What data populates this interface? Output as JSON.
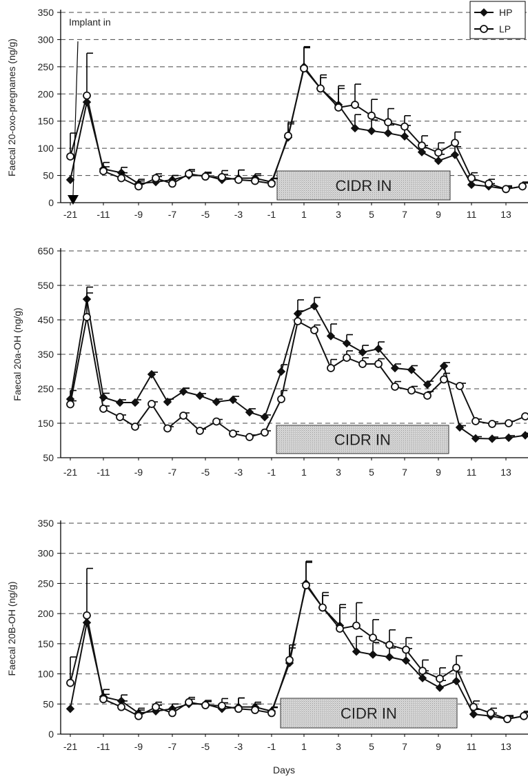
{
  "chart_data": [
    {
      "type": "line",
      "ylabel": "Faecal 20-oxo-pregnanes (ng/g)",
      "ylim": [
        0,
        350
      ],
      "yticks": [
        0,
        50,
        100,
        150,
        200,
        250,
        300,
        350
      ],
      "grid": "dashed-horizontal",
      "xticks": [
        "-21",
        "-11",
        "-9",
        "-7",
        "-5",
        "-3",
        "-1",
        "1",
        "3",
        "5",
        "7",
        "9",
        "11",
        "13"
      ],
      "annotation": "Implant in",
      "box_label": "CIDR IN",
      "legend": {
        "position": "top-right",
        "entries": [
          "HP",
          "LP"
        ]
      },
      "series": [
        {
          "name": "HP",
          "marker": "diamond",
          "values": [
            42,
            185,
            62,
            55,
            35,
            38,
            42,
            50,
            50,
            42,
            45,
            45,
            38,
            120,
            250,
            210,
            180,
            137,
            132,
            128,
            122,
            93,
            77,
            88,
            33,
            30,
            25,
            30
          ],
          "errors": [
            0,
            0,
            12,
            10,
            8,
            10,
            8,
            8,
            6,
            10,
            15,
            8,
            6,
            25,
            35,
            20,
            30,
            25,
            20,
            15,
            20,
            12,
            12,
            15,
            8,
            5,
            4,
            6
          ]
        },
        {
          "name": "LP",
          "marker": "circle",
          "values": [
            85,
            197,
            58,
            45,
            30,
            45,
            35,
            53,
            48,
            47,
            42,
            40,
            35,
            123,
            247,
            210,
            175,
            180,
            160,
            148,
            140,
            105,
            92,
            110,
            45,
            35,
            25,
            30
          ],
          "errors": [
            43,
            78,
            8,
            10,
            10,
            8,
            15,
            8,
            6,
            12,
            18,
            10,
            10,
            25,
            40,
            25,
            40,
            38,
            30,
            25,
            20,
            18,
            18,
            20,
            10,
            8,
            6,
            8
          ]
        }
      ]
    },
    {
      "type": "line",
      "ylabel": "Faecal 20a-OH (ng/g)",
      "ylim": [
        50,
        650
      ],
      "yticks": [
        50,
        150,
        250,
        350,
        450,
        550,
        650
      ],
      "grid": "dashed-horizontal",
      "xticks": [
        "-21",
        "-11",
        "-9",
        "-7",
        "-5",
        "-3",
        "-1",
        "1",
        "3",
        "5",
        "7",
        "9",
        "11",
        "13"
      ],
      "box_label": "CIDR IN",
      "series": [
        {
          "name": "HP",
          "marker": "diamond",
          "values": [
            220,
            510,
            225,
            210,
            210,
            292,
            212,
            242,
            230,
            212,
            218,
            182,
            168,
            300,
            468,
            490,
            403,
            382,
            356,
            366,
            310,
            305,
            262,
            316,
            138,
            106,
            105,
            108,
            115
          ],
          "errors": [
            25,
            35,
            12,
            8,
            8,
            6,
            8,
            10,
            6,
            8,
            10,
            10,
            6,
            20,
            40,
            25,
            35,
            25,
            20,
            20,
            12,
            12,
            10,
            10,
            5,
            5,
            5,
            6,
            6
          ]
        },
        {
          "name": "LP",
          "marker": "circle",
          "values": [
            205,
            458,
            192,
            168,
            140,
            206,
            135,
            172,
            128,
            155,
            120,
            110,
            123,
            220,
            446,
            420,
            310,
            340,
            322,
            322,
            256,
            245,
            230,
            277,
            258,
            156,
            148,
            150,
            170
          ],
          "errors": [
            10,
            70,
            8,
            6,
            5,
            6,
            5,
            8,
            5,
            6,
            6,
            6,
            5,
            25,
            30,
            15,
            25,
            20,
            18,
            15,
            15,
            12,
            12,
            18,
            8,
            6,
            6,
            6,
            6
          ]
        }
      ]
    },
    {
      "type": "line",
      "ylabel": "Faecal 20B-OH (ng/g)",
      "xlabel": "Days",
      "ylim": [
        0,
        350
      ],
      "yticks": [
        0,
        50,
        100,
        150,
        200,
        250,
        300,
        350
      ],
      "grid": "dashed-horizontal",
      "xticks": [
        "-21",
        "-11",
        "-9",
        "-7",
        "-5",
        "-3",
        "-1",
        "1",
        "3",
        "5",
        "7",
        "9",
        "11",
        "13"
      ],
      "box_label": "CIDR IN",
      "series": [
        {
          "name": "HP",
          "marker": "diamond",
          "values": [
            42,
            185,
            62,
            55,
            35,
            38,
            42,
            50,
            50,
            42,
            45,
            45,
            38,
            118,
            250,
            210,
            180,
            137,
            132,
            128,
            122,
            93,
            77,
            88,
            33,
            30,
            25,
            30
          ],
          "errors": [
            0,
            0,
            12,
            10,
            8,
            10,
            8,
            8,
            6,
            10,
            15,
            8,
            6,
            25,
            35,
            20,
            30,
            25,
            20,
            15,
            20,
            12,
            12,
            15,
            8,
            5,
            4,
            6
          ]
        },
        {
          "name": "LP",
          "marker": "circle",
          "values": [
            85,
            197,
            58,
            45,
            30,
            45,
            35,
            53,
            48,
            47,
            42,
            40,
            35,
            123,
            247,
            210,
            175,
            180,
            160,
            148,
            140,
            105,
            92,
            110,
            45,
            35,
            25,
            30
          ],
          "errors": [
            43,
            78,
            8,
            10,
            10,
            8,
            15,
            8,
            6,
            12,
            18,
            10,
            10,
            25,
            40,
            25,
            40,
            38,
            30,
            25,
            20,
            18,
            18,
            20,
            10,
            8,
            6,
            8
          ]
        }
      ]
    }
  ]
}
